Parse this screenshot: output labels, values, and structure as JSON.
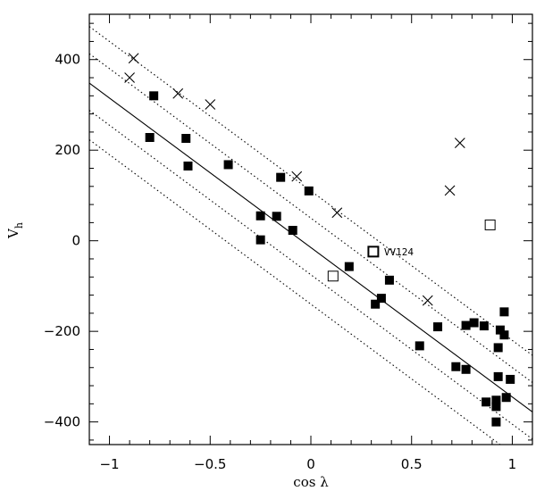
{
  "chart_data": {
    "type": "scatter",
    "title": "",
    "xlabel": "cos λ",
    "ylabel_main": "V",
    "ylabel_sub": "h",
    "xlim": [
      -1.1,
      1.1
    ],
    "ylim": [
      -450,
      500
    ],
    "x_ticks": [
      -1,
      -0.5,
      0,
      0.5,
      1
    ],
    "x_tick_labels": [
      "−1",
      "−0.5",
      "0",
      "0.5",
      "1"
    ],
    "y_ticks": [
      -400,
      -200,
      0,
      200,
      400
    ],
    "y_tick_labels": [
      "−400",
      "−200",
      "0",
      "200",
      "400"
    ],
    "grid": false,
    "legend": "none",
    "fit_line": {
      "slope": -330,
      "intercept": -15,
      "style": "solid"
    },
    "envelope_lines": [
      {
        "slope": -330,
        "intercept": 110,
        "style": "dotted"
      },
      {
        "slope": -330,
        "intercept": 50,
        "style": "dotted"
      },
      {
        "slope": -330,
        "intercept": -75,
        "style": "dotted"
      },
      {
        "slope": -330,
        "intercept": -140,
        "style": "dotted"
      }
    ],
    "series": [
      {
        "marker": "filled-square",
        "points": [
          [
            -0.78,
            320
          ],
          [
            -0.8,
            228
          ],
          [
            -0.62,
            226
          ],
          [
            -0.61,
            165
          ],
          [
            -0.41,
            168
          ],
          [
            -0.15,
            140
          ],
          [
            -0.01,
            110
          ],
          [
            -0.25,
            55
          ],
          [
            -0.17,
            54
          ],
          [
            -0.09,
            23
          ],
          [
            -0.25,
            2
          ],
          [
            0.19,
            -57
          ],
          [
            0.32,
            -140
          ],
          [
            0.35,
            -127
          ],
          [
            0.39,
            -87
          ],
          [
            0.54,
            -232
          ],
          [
            0.63,
            -190
          ],
          [
            0.72,
            -278
          ],
          [
            0.77,
            -284
          ],
          [
            0.77,
            -187
          ],
          [
            0.81,
            -181
          ],
          [
            0.86,
            -188
          ],
          [
            0.87,
            -356
          ],
          [
            0.92,
            -352
          ],
          [
            0.92,
            -366
          ],
          [
            0.92,
            -400
          ],
          [
            0.93,
            -300
          ],
          [
            0.93,
            -236
          ],
          [
            0.94,
            -197
          ],
          [
            0.96,
            -208
          ],
          [
            0.96,
            -157
          ],
          [
            0.97,
            -346
          ],
          [
            0.99,
            -306
          ]
        ]
      },
      {
        "marker": "cross",
        "points": [
          [
            -0.88,
            403
          ],
          [
            -0.9,
            360
          ],
          [
            -0.66,
            325
          ],
          [
            -0.5,
            301
          ],
          [
            -0.07,
            142
          ],
          [
            0.13,
            62
          ],
          [
            0.58,
            -132
          ],
          [
            0.69,
            111
          ],
          [
            0.74,
            216
          ]
        ]
      },
      {
        "marker": "open-square",
        "points": [
          [
            0.11,
            -78
          ],
          [
            0.89,
            35
          ]
        ]
      }
    ],
    "highlight": {
      "x": 0.31,
      "y": -24,
      "label": "VV124"
    }
  }
}
